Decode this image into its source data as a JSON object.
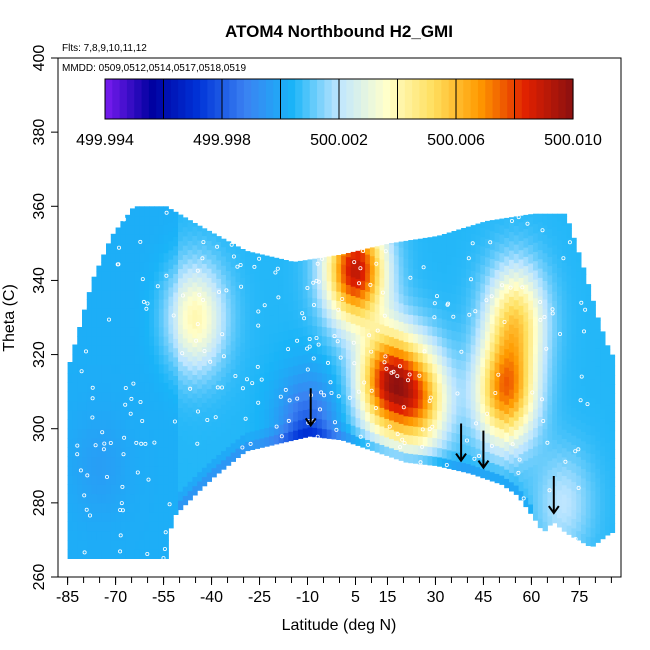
{
  "chart_data": {
    "type": "heatmap",
    "title": "ATOM4 Northbound H2_GMI",
    "xlabel": "Latitude (deg N)",
    "ylabel": "Theta (C)",
    "annotations": {
      "flights": "Flts: 7,8,9,10,11,12",
      "dates": "MMDD: 0509,0512,0514,0517,0518,0519"
    },
    "xlim": [
      -88,
      88
    ],
    "ylim": [
      260,
      400
    ],
    "x_ticks": [
      -85,
      -70,
      -55,
      -40,
      -25,
      -10,
      5,
      15,
      30,
      45,
      60,
      75
    ],
    "x_tick_labels": [
      "-85",
      "-70",
      "-55",
      "-40",
      "-25",
      "-10",
      "5",
      "15",
      "30",
      "45",
      "60",
      "75"
    ],
    "y_ticks": [
      260,
      280,
      300,
      320,
      340,
      360,
      380,
      400
    ],
    "y_tick_labels": [
      "260",
      "280",
      "300",
      "320",
      "340",
      "360",
      "380",
      "400"
    ],
    "colorbar": {
      "min": 499.994,
      "max": 500.01,
      "ticks": [
        499.994,
        499.998,
        500.002,
        500.006,
        500.01
      ],
      "tick_labels": [
        "499.994",
        "499.998",
        "500.002",
        "500.006",
        "500.010"
      ],
      "colors": [
        "#7a1cf0",
        "#0000a0",
        "#0033d8",
        "#3b82f2",
        "#19b4f8",
        "#bfe6ff",
        "#ffffcc",
        "#ffe060",
        "#ff9a00",
        "#e02000",
        "#8a1010"
      ]
    },
    "field": {
      "background_value": 500.0005,
      "features": [
        {
          "lat": -75,
          "theta": 290,
          "value": 500.0
        },
        {
          "lat": -45,
          "theta": 330,
          "value": 500.004
        },
        {
          "lat": -10,
          "theta": 300,
          "value": 499.998
        },
        {
          "lat": 5,
          "theta": 343,
          "value": 500.009
        },
        {
          "lat": 15,
          "theta": 313,
          "value": 500.008
        },
        {
          "lat": 25,
          "theta": 308,
          "value": 500.006
        },
        {
          "lat": 52,
          "theta": 310,
          "value": 500.007
        },
        {
          "lat": 55,
          "theta": 330,
          "value": 500.005
        },
        {
          "lat": 70,
          "theta": 280,
          "value": 500.002
        }
      ]
    },
    "arrows_lat": [
      -9,
      38,
      45,
      67
    ]
  }
}
